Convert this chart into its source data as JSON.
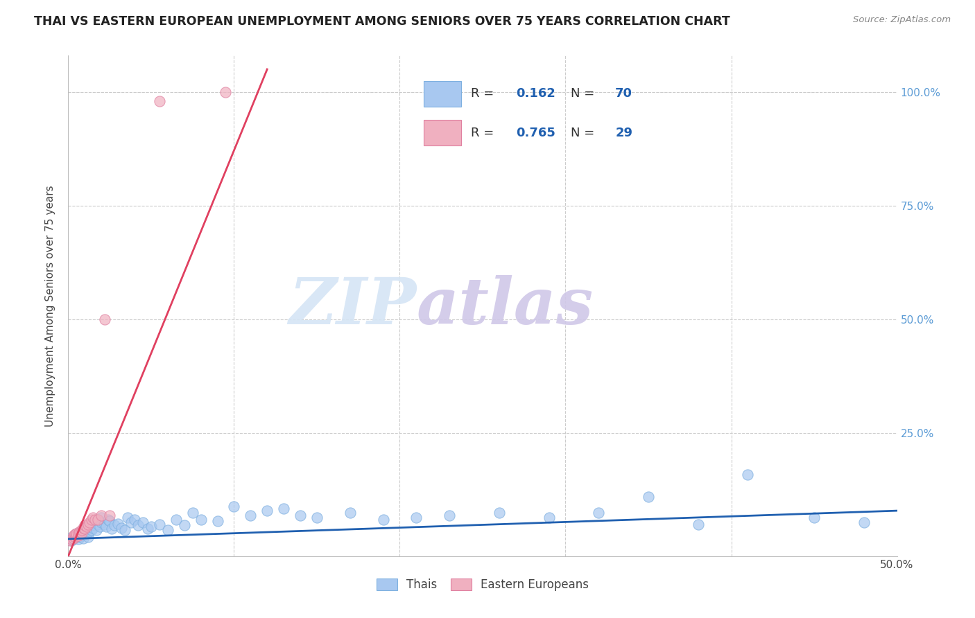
{
  "title": "THAI VS EASTERN EUROPEAN UNEMPLOYMENT AMONG SENIORS OVER 75 YEARS CORRELATION CHART",
  "source": "Source: ZipAtlas.com",
  "ylabel": "Unemployment Among Seniors over 75 years",
  "xlim": [
    0.0,
    0.5
  ],
  "ylim": [
    -0.02,
    1.08
  ],
  "thai_color": "#a8c8f0",
  "thai_edge_color": "#7eb0e0",
  "eastern_color": "#f0b0c0",
  "eastern_edge_color": "#e080a0",
  "thai_line_color": "#2060b0",
  "eastern_line_color": "#e04060",
  "watermark_color": "#d5e5f5",
  "watermark_color2": "#d0c8e8",
  "legend_label_thai": "Thais",
  "legend_label_eastern": "Eastern Europeans",
  "thai_R": "0.162",
  "thai_N": "70",
  "eastern_R": "0.765",
  "eastern_N": "29",
  "thai_scatter_x": [
    0.001,
    0.002,
    0.003,
    0.004,
    0.005,
    0.005,
    0.006,
    0.007,
    0.007,
    0.008,
    0.008,
    0.009,
    0.01,
    0.01,
    0.011,
    0.012,
    0.012,
    0.013,
    0.013,
    0.014,
    0.015,
    0.015,
    0.016,
    0.017,
    0.018,
    0.018,
    0.019,
    0.02,
    0.02,
    0.022,
    0.023,
    0.024,
    0.025,
    0.026,
    0.028,
    0.03,
    0.032,
    0.034,
    0.036,
    0.038,
    0.04,
    0.042,
    0.045,
    0.048,
    0.05,
    0.055,
    0.06,
    0.065,
    0.07,
    0.075,
    0.08,
    0.09,
    0.1,
    0.11,
    0.12,
    0.13,
    0.14,
    0.15,
    0.17,
    0.19,
    0.21,
    0.23,
    0.26,
    0.29,
    0.32,
    0.35,
    0.38,
    0.41,
    0.45,
    0.48
  ],
  "thai_scatter_y": [
    0.02,
    0.015,
    0.018,
    0.022,
    0.025,
    0.03,
    0.018,
    0.022,
    0.028,
    0.025,
    0.032,
    0.02,
    0.028,
    0.035,
    0.03,
    0.04,
    0.022,
    0.035,
    0.045,
    0.038,
    0.042,
    0.055,
    0.048,
    0.038,
    0.05,
    0.06,
    0.045,
    0.055,
    0.065,
    0.05,
    0.045,
    0.06,
    0.058,
    0.04,
    0.048,
    0.052,
    0.042,
    0.038,
    0.065,
    0.055,
    0.06,
    0.048,
    0.055,
    0.04,
    0.045,
    0.05,
    0.038,
    0.06,
    0.048,
    0.075,
    0.06,
    0.058,
    0.09,
    0.07,
    0.08,
    0.085,
    0.07,
    0.065,
    0.075,
    0.06,
    0.065,
    0.07,
    0.075,
    0.065,
    0.075,
    0.11,
    0.05,
    0.16,
    0.065,
    0.055
  ],
  "eastern_scatter_x": [
    0.001,
    0.002,
    0.003,
    0.003,
    0.004,
    0.004,
    0.005,
    0.005,
    0.006,
    0.006,
    0.007,
    0.007,
    0.008,
    0.008,
    0.009,
    0.01,
    0.01,
    0.011,
    0.012,
    0.013,
    0.014,
    0.015,
    0.016,
    0.018,
    0.02,
    0.022,
    0.025,
    0.055,
    0.095
  ],
  "eastern_scatter_y": [
    0.015,
    0.018,
    0.02,
    0.025,
    0.022,
    0.028,
    0.025,
    0.03,
    0.025,
    0.03,
    0.03,
    0.035,
    0.032,
    0.038,
    0.042,
    0.04,
    0.048,
    0.045,
    0.05,
    0.055,
    0.06,
    0.065,
    0.06,
    0.06,
    0.07,
    0.5,
    0.07,
    0.98,
    1.0
  ],
  "eastern_line_x": [
    0.0,
    0.12
  ],
  "eastern_line_y": [
    -0.02,
    1.05
  ],
  "thai_line_x": [
    0.0,
    0.5
  ],
  "thai_line_y": [
    0.018,
    0.08
  ]
}
